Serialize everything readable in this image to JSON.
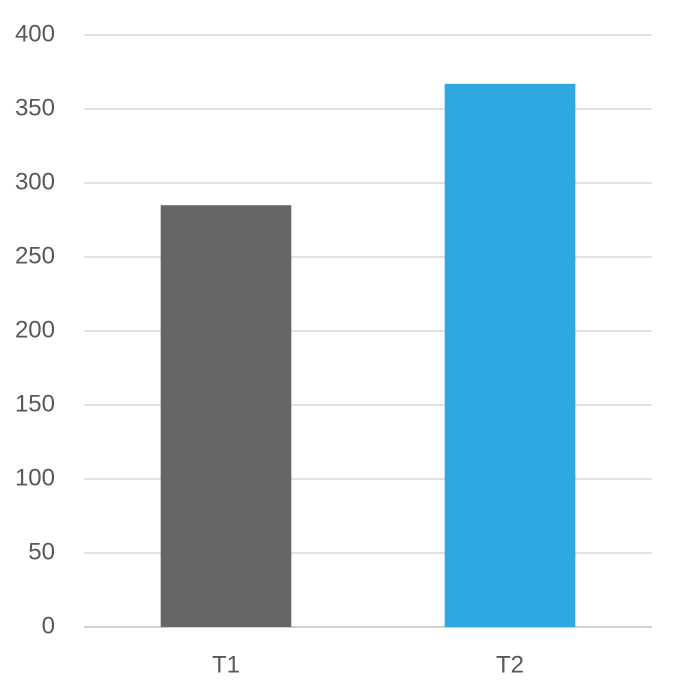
{
  "chart_data": {
    "type": "bar",
    "categories": [
      "T1",
      "T2"
    ],
    "values": [
      285,
      367
    ],
    "colors": [
      "#666666",
      "#2ea8df"
    ],
    "ylim": [
      0,
      400
    ],
    "yticks": [
      0,
      50,
      100,
      150,
      200,
      250,
      300,
      350,
      400
    ],
    "grid": true
  }
}
